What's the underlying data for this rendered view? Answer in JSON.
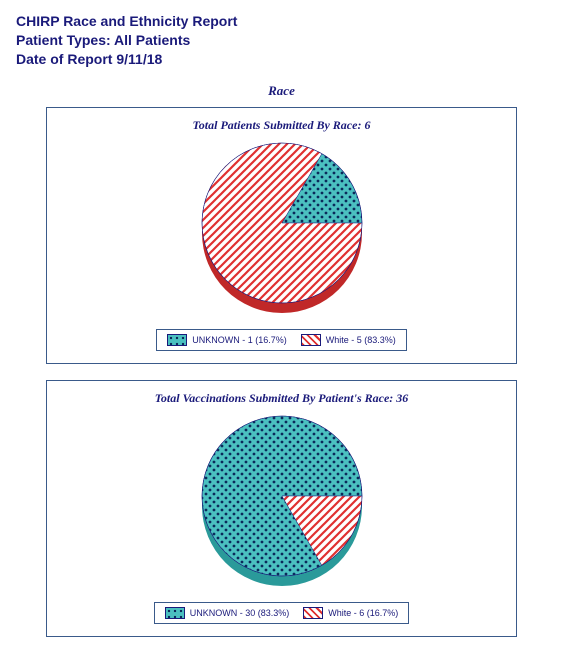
{
  "header": {
    "line1": "CHIRP Race and Ethnicity Report",
    "line2": "Patient Types: All Patients",
    "line3": "Date of Report 9/11/18"
  },
  "section_title": "Race",
  "colors": {
    "border": "#3a5a8a",
    "text": "#1a1a7a",
    "teal_base": "#4bc0c0",
    "teal_dot": "#0a2a5a",
    "red_base": "#ffffff",
    "red_stripe": "#e03030",
    "shadow_dark": "#2a9a9a",
    "shadow_red": "#c02828"
  },
  "chart1": {
    "type": "pie",
    "title": "Total Patients Submitted By Race: 6",
    "slices": [
      {
        "label": "UNKNOWN",
        "count": 1,
        "pct": 16.7,
        "pattern": "teal-dots"
      },
      {
        "label": "White",
        "count": 5,
        "pct": 83.3,
        "pattern": "red-stripes"
      }
    ],
    "legend": [
      "UNKNOWN - 1 (16.7%)",
      "White - 5 (83.3%)"
    ],
    "radius": 80,
    "depth": 10
  },
  "chart2": {
    "type": "pie",
    "title": "Total Vaccinations Submitted By Patient's Race: 36",
    "slices": [
      {
        "label": "UNKNOWN",
        "count": 30,
        "pct": 83.3,
        "pattern": "teal-dots"
      },
      {
        "label": "White",
        "count": 6,
        "pct": 16.7,
        "pattern": "red-stripes"
      }
    ],
    "legend": [
      "UNKNOWN - 30 (83.3%)",
      "White - 6 (16.7%)"
    ],
    "radius": 80,
    "depth": 10
  }
}
